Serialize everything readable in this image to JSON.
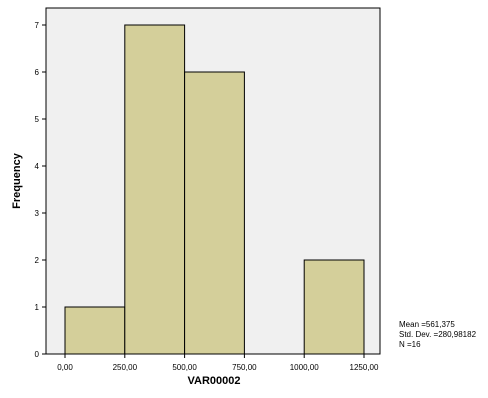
{
  "chart_data": {
    "type": "bar",
    "subtype": "histogram",
    "bins": [
      {
        "from": 0,
        "to": 250,
        "count": 1
      },
      {
        "from": 250,
        "to": 500,
        "count": 7
      },
      {
        "from": 500,
        "to": 750,
        "count": 6
      },
      {
        "from": 750,
        "to": 1000,
        "count": 0
      },
      {
        "from": 1000,
        "to": 1250,
        "count": 2
      }
    ],
    "x_ticks": [
      "0,00",
      "250,00",
      "500,00",
      "750,00",
      "1000,00",
      "1250,00"
    ],
    "y_ticks": [
      "0",
      "1",
      "2",
      "3",
      "4",
      "5",
      "6",
      "7"
    ],
    "xlabel": "VAR00002",
    "ylabel": "Frequency",
    "xlim": [
      0,
      1250
    ],
    "ylim": [
      0,
      7.7
    ],
    "grid": false,
    "colors": {
      "bar_fill": "#d4cf9a",
      "bar_stroke": "#000000",
      "plot_background": "#f0f0f0"
    }
  },
  "stats": {
    "mean": "Mean =561,375",
    "std_dev": "Std. Dev. =280,98182",
    "n": "N =16"
  }
}
